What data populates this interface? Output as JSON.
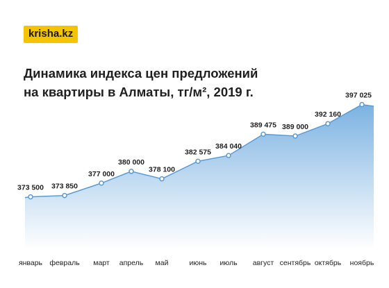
{
  "brand": {
    "logo_text": "krisha.kz",
    "accent": "#f4c400"
  },
  "title_line1": "Динамика индекса цен предложений",
  "title_line2": "на квартиры в Алматы, тг/м², 2019 г.",
  "chart_data": {
    "type": "area",
    "categories": [
      "январь",
      "февраль",
      "март",
      "апрель",
      "май",
      "июнь",
      "июль",
      "август",
      "сентябрь",
      "октябрь",
      "ноябрь"
    ],
    "values": [
      373500,
      373850,
      377000,
      380000,
      378100,
      382575,
      384040,
      389475,
      389000,
      392160,
      397025
    ],
    "value_labels": [
      "373 500",
      "373 850",
      "377 000",
      "380 000",
      "378 100",
      "382 575",
      "384 040",
      "389 475",
      "389 000",
      "392 160",
      "397 025"
    ],
    "ylim": [
      360000,
      397500
    ],
    "grid": false,
    "colors": {
      "fill_top": "#74aee0",
      "fill_bottom": "#ffffff",
      "line": "#5a9bd6",
      "point": "#5a9bd6"
    }
  }
}
